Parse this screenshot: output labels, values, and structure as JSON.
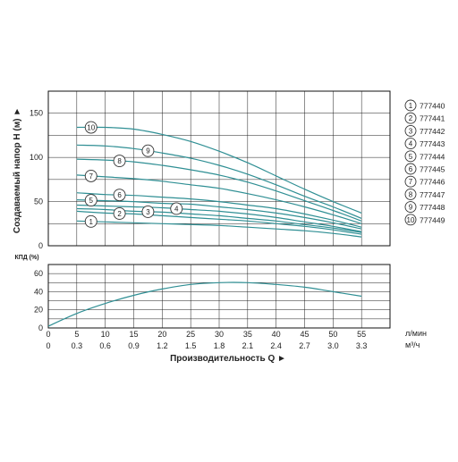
{
  "chart_data": [
    {
      "type": "line",
      "ylabel": "Создаваемый напор H (м) ►",
      "ylim": [
        0,
        175
      ],
      "yticks": [
        "0",
        "50",
        "100",
        "150"
      ],
      "xlim": [
        0,
        60
      ],
      "grid": true,
      "legend_position": "right",
      "x": [
        5,
        10,
        15,
        20,
        25,
        30,
        35,
        40,
        45,
        50,
        55
      ],
      "series": [
        {
          "name": "777440",
          "marker": "1",
          "marker_x": 7.5,
          "values": [
            28,
            27,
            26,
            25,
            24,
            23,
            21,
            19,
            17,
            14,
            10
          ]
        },
        {
          "name": "777441",
          "marker": "2",
          "marker_x": 12.5,
          "values": [
            39,
            37,
            36,
            34,
            32,
            30,
            28,
            25,
            22,
            18,
            13
          ]
        },
        {
          "name": "777442",
          "marker": "3",
          "marker_x": 17.5,
          "values": [
            42,
            41,
            39,
            38,
            36,
            34,
            31,
            28,
            24,
            20,
            15
          ]
        },
        {
          "name": "777443",
          "marker": "4",
          "marker_x": 22.5,
          "values": [
            46,
            45,
            44,
            43,
            41,
            39,
            36,
            32,
            27,
            22,
            16
          ]
        },
        {
          "name": "777444",
          "marker": "5",
          "marker_x": 7.5,
          "values": [
            52,
            51,
            50,
            48,
            47,
            44,
            41,
            37,
            32,
            26,
            19
          ]
        },
        {
          "name": "777445",
          "marker": "6",
          "marker_x": 12.5,
          "values": [
            60,
            58,
            57,
            55,
            53,
            50,
            46,
            42,
            36,
            29,
            21
          ]
        },
        {
          "name": "777446",
          "marker": "7",
          "marker_x": 7.5,
          "values": [
            80,
            78,
            76,
            73,
            69,
            65,
            59,
            52,
            44,
            35,
            25
          ]
        },
        {
          "name": "777447",
          "marker": "8",
          "marker_x": 12.5,
          "values": [
            98,
            97,
            95,
            91,
            86,
            80,
            72,
            62,
            51,
            40,
            28
          ]
        },
        {
          "name": "777448",
          "marker": "9",
          "marker_x": 17.5,
          "values": [
            114,
            113,
            110,
            105,
            99,
            91,
            81,
            69,
            56,
            44,
            31
          ]
        },
        {
          "name": "777449",
          "marker": "10",
          "marker_x": 7.5,
          "values": [
            134,
            134,
            132,
            126,
            118,
            107,
            94,
            79,
            64,
            50,
            37
          ]
        }
      ]
    },
    {
      "type": "line",
      "ylabel": "КПД (%)",
      "ylim": [
        0,
        70
      ],
      "yticks": [
        "0",
        "20",
        "40",
        "60"
      ],
      "xlim": [
        0,
        60
      ],
      "grid": true,
      "x": [
        0,
        5,
        10,
        15,
        20,
        25,
        30,
        35,
        40,
        45,
        50,
        55
      ],
      "series": [
        {
          "name": "",
          "values": [
            2,
            16,
            27,
            36,
            43,
            48,
            50,
            50,
            48,
            45,
            40,
            35
          ]
        }
      ],
      "xticks_lmin": [
        "0",
        "5",
        "10",
        "15",
        "20",
        "25",
        "30",
        "35",
        "40",
        "45",
        "50",
        "55"
      ],
      "xticks_m3h": [
        "0",
        "0.3",
        "0.6",
        "0.9",
        "1.2",
        "1.5",
        "1.8",
        "2.1",
        "2.4",
        "2.7",
        "3.0",
        "3.3"
      ],
      "xunit_lmin": "л/мин",
      "xunit_m3h": "м³/ч",
      "xlabel": "Производительность Q ►"
    }
  ],
  "colors": {
    "curve": "#2f8f94",
    "grid": "#1d1d1d",
    "axis": "#111111"
  }
}
